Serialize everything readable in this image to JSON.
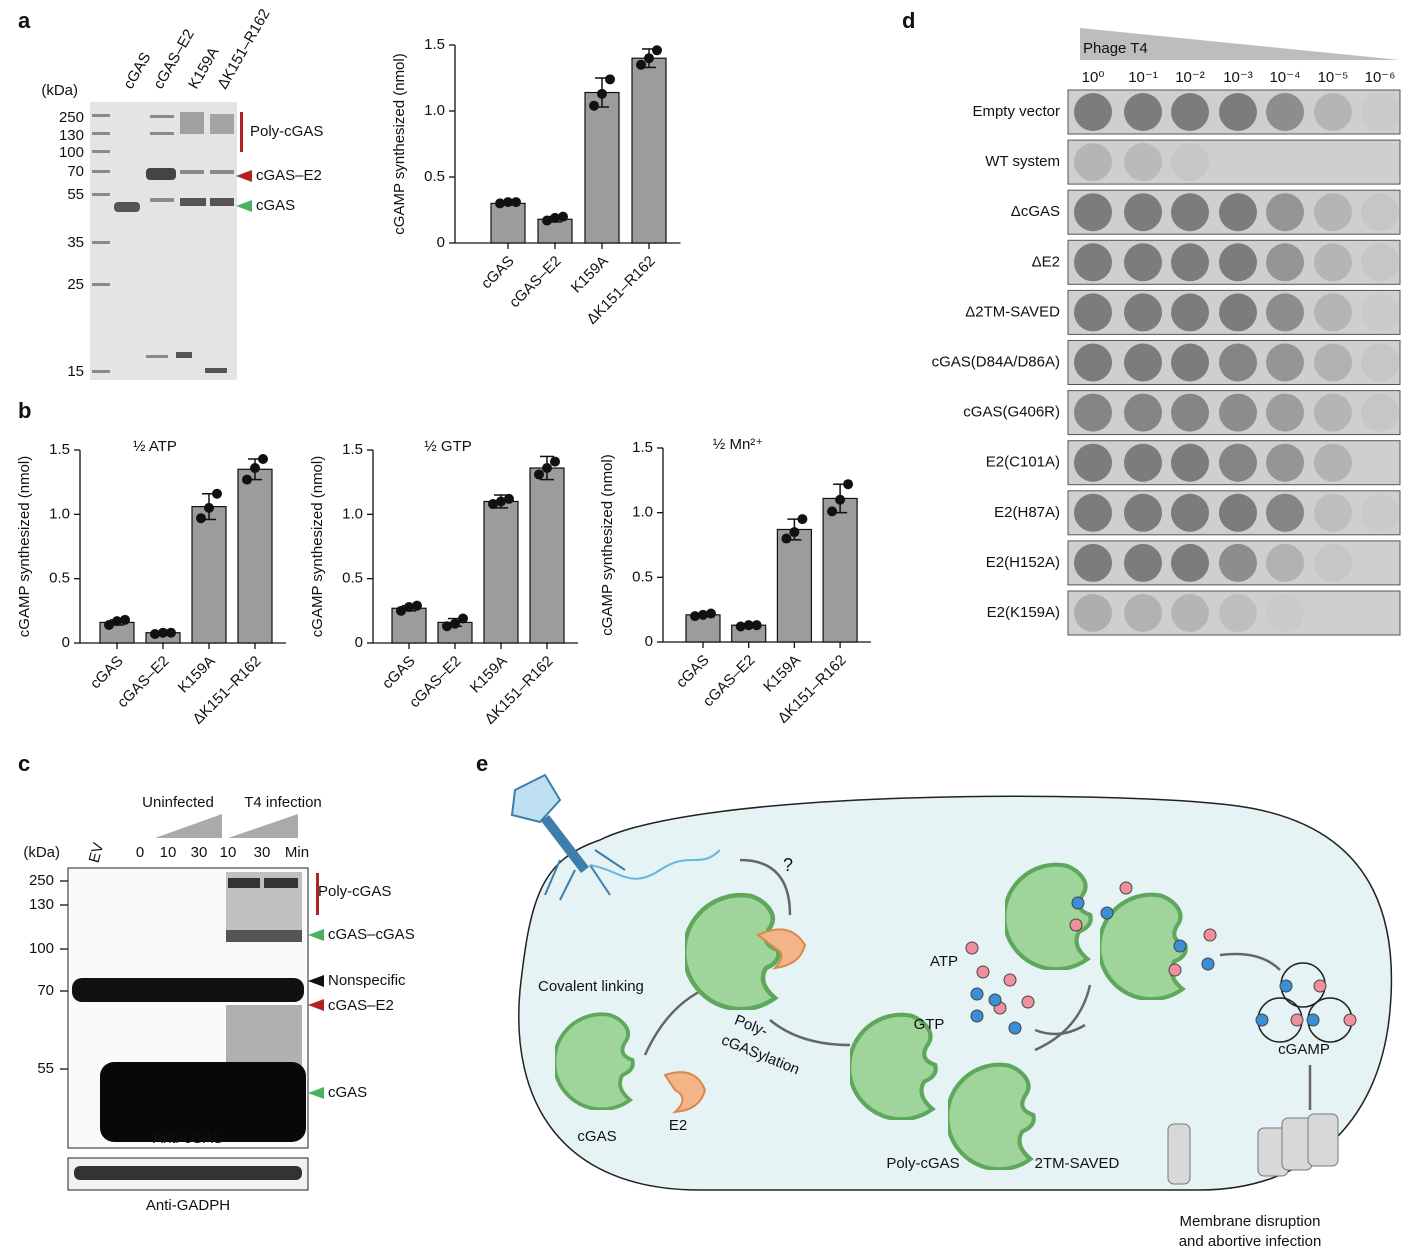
{
  "chart_data": [
    {
      "type": "bar",
      "ylabel": "cGAMP synthesized (nmol)",
      "categories": [
        "cGAS",
        "cGAS–E2",
        "K159A",
        "ΔK151–R162"
      ],
      "values": [
        0.3,
        0.18,
        1.14,
        1.4
      ],
      "errors": [
        0.01,
        0.02,
        0.11,
        0.07
      ],
      "points": [
        [
          0.3,
          0.31,
          0.31
        ],
        [
          0.17,
          0.19,
          0.2
        ],
        [
          1.04,
          1.13,
          1.24
        ],
        [
          1.35,
          1.4,
          1.46
        ]
      ],
      "color": "#9c9c9c",
      "ylim": [
        0,
        1.5
      ],
      "yticks": [
        0,
        0.5,
        {
          "value": 1,
          "label": "1.0"
        },
        1.5
      ]
    },
    {
      "type": "bar",
      "title": "½ ATP",
      "ylabel": "cGAMP synthesized (nmol)",
      "categories": [
        "cGAS",
        "cGAS–E2",
        "K159A",
        "ΔK151–R162"
      ],
      "values": [
        0.16,
        0.08,
        1.06,
        1.35
      ],
      "errors": [
        0.02,
        0.01,
        0.1,
        0.08
      ],
      "points": [
        [
          0.14,
          0.17,
          0.18
        ],
        [
          0.07,
          0.08,
          0.08
        ],
        [
          0.97,
          1.05,
          1.16
        ],
        [
          1.27,
          1.36,
          1.43
        ]
      ],
      "color": "#9c9c9c",
      "ylim": [
        0,
        1.5
      ],
      "yticks": [
        0,
        0.5,
        {
          "value": 1,
          "label": "1.0"
        },
        1.5
      ]
    },
    {
      "type": "bar",
      "title": "½ GTP",
      "ylabel": "cGAMP synthesized (nmol)",
      "categories": [
        "cGAS",
        "cGAS–E2",
        "K159A",
        "ΔK151–R162"
      ],
      "values": [
        0.27,
        0.16,
        1.1,
        1.36
      ],
      "errors": [
        0.02,
        0.03,
        0.05,
        0.09
      ],
      "points": [
        [
          0.25,
          0.28,
          0.29
        ],
        [
          0.13,
          0.15,
          0.19
        ],
        [
          1.08,
          1.1,
          1.12
        ],
        [
          1.31,
          1.36,
          1.41
        ]
      ],
      "color": "#9c9c9c",
      "ylim": [
        0,
        1.5
      ],
      "yticks": [
        0,
        0.5,
        {
          "value": 1,
          "label": "1.0"
        },
        1.5
      ]
    },
    {
      "type": "bar",
      "title": "½ Mn²⁺",
      "ylabel": "cGAMP synthesized (nmol)",
      "categories": [
        "cGAS",
        "cGAS–E2",
        "K159A",
        "ΔK151–R162"
      ],
      "values": [
        0.21,
        0.13,
        0.87,
        1.11
      ],
      "errors": [
        0.01,
        0.01,
        0.08,
        0.11
      ],
      "points": [
        [
          0.2,
          0.21,
          0.22
        ],
        [
          0.12,
          0.13,
          0.13
        ],
        [
          0.8,
          0.85,
          0.95
        ],
        [
          1.01,
          1.1,
          1.22
        ]
      ],
      "color": "#9c9c9c",
      "ylim": [
        0,
        1.5
      ],
      "yticks": [
        0,
        0.5,
        {
          "value": 1,
          "label": "1.0"
        },
        1.5
      ]
    }
  ],
  "panels": [
    "a",
    "b",
    "c",
    "d",
    "e"
  ],
  "gel_a": {
    "unit": "(kDa)",
    "lanes": [
      "cGAS",
      "cGAS–E2",
      "K159A",
      "ΔK151–R162"
    ],
    "ladder": [
      "250",
      "130",
      "100",
      "70",
      "55",
      "35",
      "25",
      "15"
    ],
    "annotations": [
      "Poly-cGAS",
      "cGAS–E2",
      "cGAS"
    ]
  },
  "gel_c": {
    "unit": "(kDa)",
    "groups": [
      "Uninfected",
      "T4 infection"
    ],
    "lanes": [
      "EV",
      "0",
      "10",
      "30",
      "10",
      "30",
      "Min"
    ],
    "ladder": [
      "250",
      "130",
      "100",
      "70",
      "55"
    ],
    "annotations": [
      "Poly-cGAS",
      "cGAS–cGAS",
      "Nonspecific",
      "cGAS–E2",
      "cGAS"
    ],
    "blots": [
      "Anti-cGAS",
      "Anti-GADPH"
    ]
  },
  "plaque_d": {
    "phage": "Phage T4",
    "dilutions": [
      "10⁰",
      "10⁻¹",
      "10⁻²",
      "10⁻³",
      "10⁻⁴",
      "10⁻⁵",
      "10⁻⁶"
    ],
    "rows": [
      "Empty vector",
      "WT system",
      "ΔcGAS",
      "ΔE2",
      "Δ2TM-SAVED",
      "cGAS(D84A/D86A)",
      "cGAS(G406R)",
      "E2(C101A)",
      "E2(H87A)",
      "E2(H152A)",
      "E2(K159A)"
    ]
  },
  "diagram_e": {
    "question": "?",
    "covalent": "Covalent linking",
    "polylation": [
      "Poly-",
      "cGASylation"
    ],
    "cgas": "cGAS",
    "e2": "E2",
    "atp": "ATP",
    "gtp": "GTP",
    "polycgas": "Poly-cGAS",
    "saved": "2TM-SAVED",
    "cgamp": "cGAMP",
    "outcome": [
      "Membrane disruption",
      "and abortive infection"
    ]
  }
}
